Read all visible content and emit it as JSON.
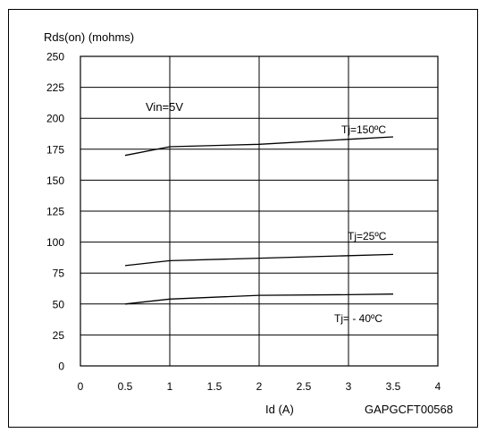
{
  "chart_data": {
    "type": "line",
    "ylabel": "Rds(on) (mohms)",
    "xlabel": "Id (A)",
    "figure_code": "GAPGCFT00568",
    "condition_label": "Vin=5V",
    "xlim": [
      0,
      4
    ],
    "ylim": [
      0,
      250
    ],
    "x_ticks": [
      "0",
      "0.5",
      "1",
      "1.5",
      "2",
      "2.5",
      "3",
      "3.5",
      "4"
    ],
    "y_ticks": [
      "0",
      "25",
      "50",
      "75",
      "100",
      "125",
      "150",
      "175",
      "200",
      "225",
      "250"
    ],
    "grid": true,
    "series": [
      {
        "name": "Tj=150ºC",
        "x": [
          0.5,
          1.0,
          2.0,
          3.0,
          3.5
        ],
        "y": [
          170,
          177,
          179,
          183,
          185
        ]
      },
      {
        "name": "Tj=25ºC",
        "x": [
          0.5,
          1.0,
          2.0,
          3.0,
          3.5
        ],
        "y": [
          81,
          85,
          87,
          89,
          90
        ]
      },
      {
        "name": "Tj= - 40ºC",
        "x": [
          0.5,
          1.0,
          2.0,
          3.0,
          3.5
        ],
        "y": [
          50,
          54,
          57,
          57.5,
          58
        ]
      }
    ]
  }
}
